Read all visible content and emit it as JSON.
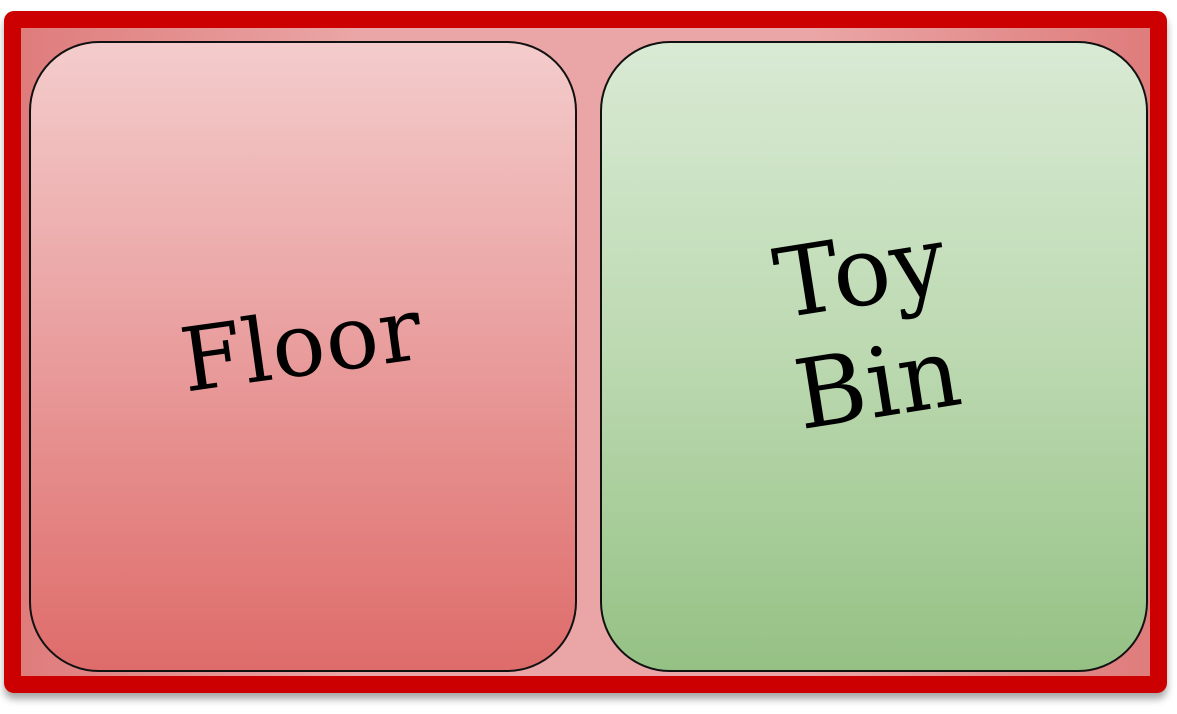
{
  "sort_board": {
    "cards": [
      {
        "label": "Floor"
      },
      {
        "label": "Toy\nBin"
      }
    ]
  },
  "colors": {
    "frame_border": "#cc0000",
    "frame_fill": "#eaa6a6",
    "floor_card_top": "#f4cccc",
    "floor_card_bottom": "#de6c6a",
    "bin_card_top": "#d9ead4",
    "bin_card_bottom": "#95c184"
  }
}
